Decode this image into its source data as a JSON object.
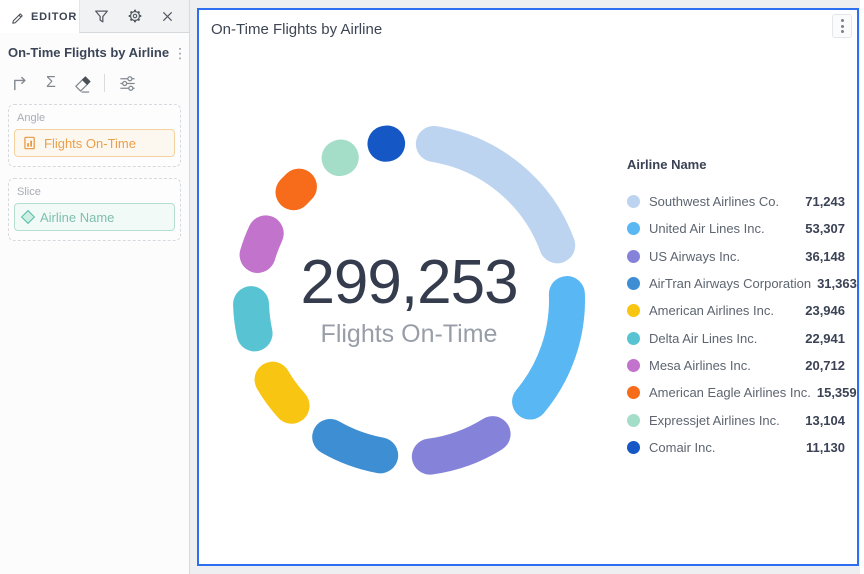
{
  "sidebar": {
    "tab_label": "EDITOR",
    "widget_title": "On-Time Flights by Airline",
    "angle": {
      "label": "Angle",
      "value": "Flights On-Time"
    },
    "slice": {
      "label": "Slice",
      "value": "Airline Name"
    }
  },
  "widget": {
    "title": "On-Time Flights by Airline",
    "center_value": "299,253",
    "center_label": "Flights On-Time",
    "legend_title": "Airline Name"
  },
  "colors": {
    "widget_border": "#2e6ff2",
    "angle_accent": "#ec9f4a",
    "slice_accent": "#7dbfae"
  },
  "icons": [
    "pencil-icon",
    "filter-icon",
    "gear-icon",
    "close-icon",
    "kebab-icon",
    "turn-arrow-icon",
    "sigma-icon",
    "eraser-icon",
    "sliders-icon",
    "measure-icon",
    "diamond-icon",
    "widget-menu-icon"
  ],
  "chart_data": {
    "type": "pie",
    "variant": "rounded-segment-donut",
    "title": "On-Time Flights by Airline",
    "total": 299253,
    "total_display": "299,253",
    "center_sublabel": "Flights On-Time",
    "legend_title": "Airline Name",
    "legend_position": "right",
    "start_angle_deg": 0,
    "pad_angle_deg": 5,
    "series": [
      {
        "label": "Southwest Airlines Co.",
        "value": 71243,
        "display": "71,243",
        "color": "#bdd4f1"
      },
      {
        "label": "United Air Lines Inc.",
        "value": 53307,
        "display": "53,307",
        "color": "#59b7f3"
      },
      {
        "label": "US Airways Inc.",
        "value": 36148,
        "display": "36,148",
        "color": "#8583d9"
      },
      {
        "label": "AirTran Airways Corporation",
        "value": 31363,
        "display": "31,363",
        "color": "#3e8ed3"
      },
      {
        "label": "American Airlines Inc.",
        "value": 23946,
        "display": "23,946",
        "color": "#f9c513"
      },
      {
        "label": "Delta Air Lines Inc.",
        "value": 22941,
        "display": "22,941",
        "color": "#58c4d3"
      },
      {
        "label": "Mesa Airlines Inc.",
        "value": 20712,
        "display": "20,712",
        "color": "#c273cc"
      },
      {
        "label": "American Eagle Airlines Inc.",
        "value": 15359,
        "display": "15,359",
        "color": "#f76c1a"
      },
      {
        "label": "Expressjet Airlines Inc.",
        "value": 13104,
        "display": "13,104",
        "color": "#a5dec8"
      },
      {
        "label": "Comair Inc.",
        "value": 11130,
        "display": "11,130",
        "color": "#1557c4"
      }
    ]
  }
}
